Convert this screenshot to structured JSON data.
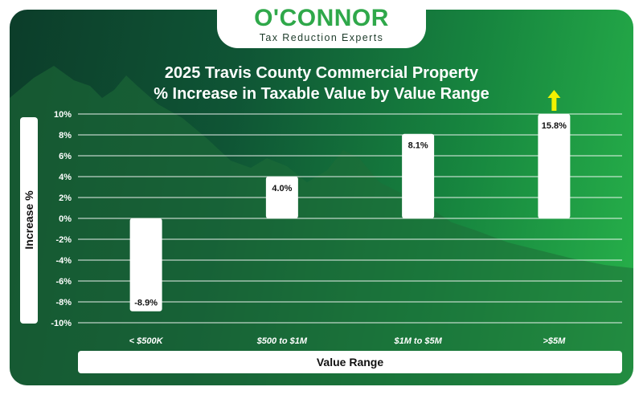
{
  "logo": {
    "name": "O'CONNOR",
    "tagline": "Tax Reduction Experts"
  },
  "colors": {
    "bar": "#ffffff",
    "grid": "#ffffff",
    "logo_green": "#2fa84a",
    "arrow": "#f2f200"
  },
  "chart_data": {
    "type": "bar",
    "title": "2025 Travis County Commercial Property",
    "subtitle": "% Increase in Taxable Value by Value Range",
    "xlabel": "Value Range",
    "ylabel": "Increase %",
    "categories": [
      "< $500K",
      "$500 to $1M",
      "$1M to $5M",
      ">$5M"
    ],
    "values": [
      -8.9,
      4.0,
      8.1,
      15.8
    ],
    "data_labels": [
      "-8.9%",
      "4.0%",
      "8.1%",
      "15.8%"
    ],
    "ylim": [
      -10,
      10
    ],
    "yticks": [
      10,
      8,
      6,
      4,
      2,
      0,
      -2,
      -4,
      -6,
      -8,
      -10
    ],
    "ytick_labels": [
      "10%",
      "8%",
      "6%",
      "4%",
      "2%",
      "0%",
      "-2%",
      "-4%",
      "-6%",
      "-8%",
      "-10%"
    ],
    "grid": true,
    "overflow_arrow_on": ">$5M"
  }
}
